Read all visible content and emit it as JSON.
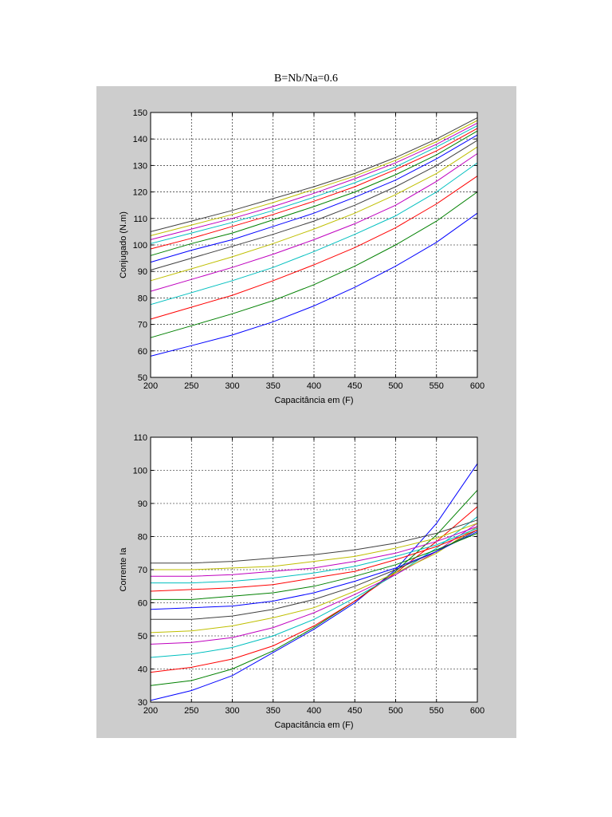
{
  "document": {
    "title": "B=Nb/Na=0.6"
  },
  "chart_data": [
    {
      "type": "line",
      "xlabel": "Capacitância em (F)",
      "ylabel": "Conjugado (N.m)",
      "xlim": [
        200,
        600
      ],
      "ylim": [
        50,
        150
      ],
      "xticks": [
        200,
        250,
        300,
        350,
        400,
        450,
        500,
        550,
        600
      ],
      "yticks": [
        50,
        60,
        70,
        80,
        90,
        100,
        110,
        120,
        130,
        140,
        150
      ],
      "grid": true,
      "x": [
        200,
        250,
        300,
        350,
        400,
        450,
        500,
        550,
        600
      ],
      "series": [
        {
          "color": "#0000ff",
          "values": [
            58,
            62,
            66,
            71,
            77,
            84,
            92,
            101,
            112
          ]
        },
        {
          "color": "#008000",
          "values": [
            65,
            69.5,
            74,
            79,
            85,
            92,
            100,
            109,
            120
          ]
        },
        {
          "color": "#ff0000",
          "values": [
            72,
            76.5,
            81,
            86.5,
            92.5,
            99,
            106.5,
            115.5,
            126
          ]
        },
        {
          "color": "#00bfbf",
          "values": [
            77.5,
            82,
            86.5,
            91.5,
            97.5,
            104,
            111,
            120,
            131
          ]
        },
        {
          "color": "#bf00bf",
          "values": [
            82.5,
            87,
            91.5,
            96.5,
            102,
            108,
            115,
            124,
            134.5
          ]
        },
        {
          "color": "#bfbf00",
          "values": [
            86.5,
            91,
            95.5,
            100.5,
            106,
            112,
            119,
            127,
            137
          ]
        },
        {
          "color": "#404040",
          "values": [
            90.5,
            95,
            99.5,
            104,
            109,
            115,
            122,
            130,
            139.5
          ]
        },
        {
          "color": "#0000ff",
          "values": [
            93.5,
            98,
            102,
            107,
            112,
            118,
            124.5,
            132.5,
            141.5
          ]
        },
        {
          "color": "#008000",
          "values": [
            96,
            100.5,
            104.5,
            109.5,
            114.5,
            120,
            126.5,
            134,
            143
          ]
        },
        {
          "color": "#ff0000",
          "values": [
            98.5,
            102.5,
            107,
            111.5,
            116.5,
            122,
            128.5,
            135.5,
            144
          ]
        },
        {
          "color": "#00bfbf",
          "values": [
            100.5,
            104.5,
            108.5,
            113,
            118,
            123.5,
            129.5,
            137,
            145
          ]
        },
        {
          "color": "#bf00bf",
          "values": [
            102,
            106,
            110,
            114.5,
            119.5,
            125,
            131,
            138,
            146
          ]
        },
        {
          "color": "#bfbf00",
          "values": [
            103.5,
            107.5,
            111.5,
            116,
            121,
            126,
            132,
            139,
            147
          ]
        },
        {
          "color": "#404040",
          "values": [
            105,
            109,
            113,
            117.5,
            122,
            127,
            133,
            140,
            148
          ]
        }
      ]
    },
    {
      "type": "line",
      "xlabel": "Capacitância em (F)",
      "ylabel": "Corrente Ia",
      "xlim": [
        200,
        600
      ],
      "ylim": [
        30,
        110
      ],
      "xticks": [
        200,
        250,
        300,
        350,
        400,
        450,
        500,
        550,
        600
      ],
      "yticks": [
        30,
        40,
        50,
        60,
        70,
        80,
        90,
        100,
        110
      ],
      "grid": true,
      "x": [
        200,
        250,
        300,
        350,
        400,
        450,
        500,
        550,
        600
      ],
      "series": [
        {
          "color": "#0000ff",
          "values": [
            30.5,
            33.5,
            38,
            45,
            52,
            60,
            70,
            84,
            102
          ]
        },
        {
          "color": "#008000",
          "values": [
            35,
            36.5,
            40,
            45.5,
            52.5,
            60.5,
            69.5,
            80.5,
            94
          ]
        },
        {
          "color": "#ff0000",
          "values": [
            39,
            40.5,
            43,
            47,
            53,
            60.5,
            69,
            78.5,
            89
          ]
        },
        {
          "color": "#00bfbf",
          "values": [
            43.5,
            44.5,
            46.5,
            50,
            55,
            61.5,
            68.5,
            76.5,
            86
          ]
        },
        {
          "color": "#bf00bf",
          "values": [
            47.5,
            48,
            49.5,
            52.5,
            57,
            62.5,
            68.5,
            75.5,
            84
          ]
        },
        {
          "color": "#bfbf00",
          "values": [
            51,
            51.5,
            53,
            55.5,
            58.5,
            63.5,
            69,
            75,
            83
          ]
        },
        {
          "color": "#404040",
          "values": [
            55,
            55,
            56,
            58,
            61,
            65,
            70,
            75.5,
            82
          ]
        },
        {
          "color": "#0000ff",
          "values": [
            58,
            58.5,
            59,
            60.5,
            63,
            66.5,
            70.5,
            75.5,
            81.5
          ]
        },
        {
          "color": "#008000",
          "values": [
            61,
            61,
            62,
            63,
            65,
            68,
            71.5,
            76,
            81
          ]
        },
        {
          "color": "#ff0000",
          "values": [
            63.5,
            64,
            64.5,
            65.5,
            67.5,
            69.5,
            73,
            77,
            82
          ]
        },
        {
          "color": "#00bfbf",
          "values": [
            66,
            66,
            66.5,
            67.5,
            69,
            71,
            74,
            77.5,
            82.5
          ]
        },
        {
          "color": "#bf00bf",
          "values": [
            68,
            68,
            68.5,
            69.5,
            70.5,
            72.5,
            75,
            78.5,
            83
          ]
        },
        {
          "color": "#bfbf00",
          "values": [
            70,
            70,
            70.5,
            71,
            72.5,
            74,
            76.5,
            79.5,
            84
          ]
        },
        {
          "color": "#404040",
          "values": [
            72,
            72,
            72.5,
            73.5,
            74.5,
            76,
            78,
            81,
            85
          ]
        }
      ]
    }
  ]
}
